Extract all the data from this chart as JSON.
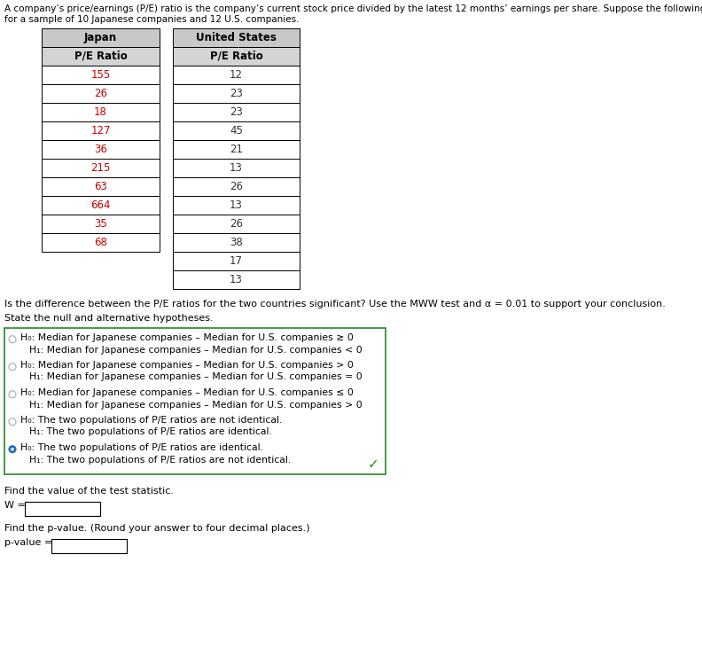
{
  "intro_line1": "A company’s price/earnings (P/E) ratio is the company’s current stock price divided by the latest 12 months’ earnings per share. Suppose the following table shows the P/E ratios",
  "intro_line2": "for a sample of 10 Japanese companies and 12 U.S. companies.",
  "japan_header": "Japan",
  "us_header": "United States",
  "pe_ratio_label": "P/E Ratio",
  "japan_values": [
    155,
    26,
    18,
    127,
    36,
    215,
    63,
    664,
    35,
    68
  ],
  "us_values": [
    12,
    23,
    23,
    45,
    21,
    13,
    26,
    13,
    26,
    38,
    17,
    13
  ],
  "japan_color": "#cc0000",
  "us_color": "#333333",
  "header_bg": "#c8c8c8",
  "subheader_bg": "#d4d4d4",
  "cell_bg": "#ffffff",
  "border_color": "#000000",
  "question_text": "Is the difference between the P/E ratios for the two countries significant? Use the MWW test and α = 0.01 to support your conclusion.",
  "state_text": "State the null and alternative hypotheses.",
  "options": [
    {
      "h0": "H₀: Median for Japanese companies – Median for U.S. companies ≥ 0",
      "ha": "H₁: Median for Japanese companies – Median for U.S. companies < 0",
      "selected": false
    },
    {
      "h0": "H₀: Median for Japanese companies – Median for U.S. companies > 0",
      "ha": "H₁: Median for Japanese companies – Median for U.S. companies = 0",
      "selected": false
    },
    {
      "h0": "H₀: Median for Japanese companies – Median for U.S. companies ≤ 0",
      "ha": "H₁: Median for Japanese companies – Median for U.S. companies > 0",
      "selected": false
    },
    {
      "h0": "H₀: The two populations of P/E ratios are not identical.",
      "ha": "H₁: The two populations of P/E ratios are identical.",
      "selected": false
    },
    {
      "h0": "H₀: The two populations of P/E ratios are identical.",
      "ha": "H₁: The two populations of P/E ratios are not identical.",
      "selected": true
    }
  ],
  "find_stat_text": "Find the value of the test statistic.",
  "w_label": "W =",
  "find_pval_text": "Find the p-value. (Round your answer to four decimal places.)",
  "pval_label": "p-value =",
  "box_border_color": "#228B22",
  "checkmark_color": "#228B22",
  "radio_selected_color": "#1a6fc4",
  "radio_unselected_color": "#aaaaaa",
  "text_color": "#000000",
  "font_size_intro": 7.5,
  "font_size_table_header": 8.5,
  "font_size_body": 8.0,
  "font_size_options": 7.8
}
